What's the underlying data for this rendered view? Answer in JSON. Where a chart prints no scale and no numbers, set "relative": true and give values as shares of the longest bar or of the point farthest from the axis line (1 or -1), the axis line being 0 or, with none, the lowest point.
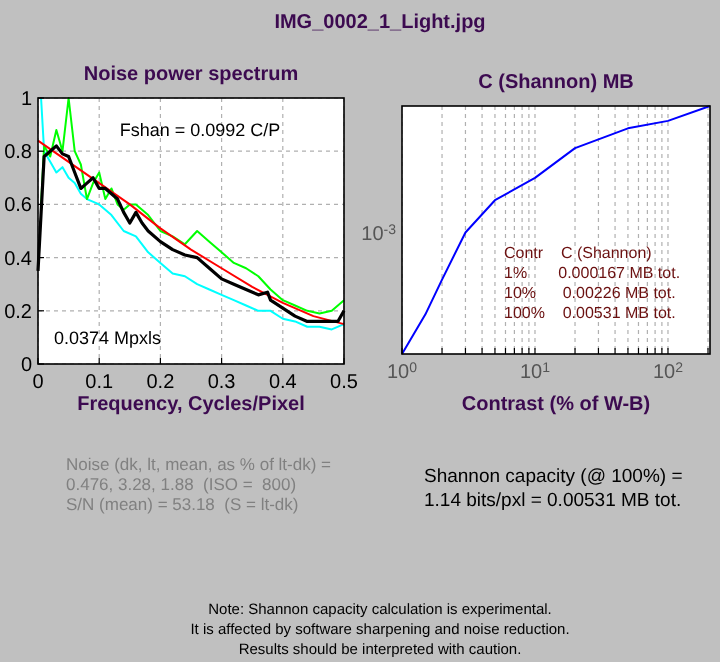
{
  "chart_data": [
    {
      "type": "line",
      "title": "Noise power spectrum",
      "xlabel": "Frequency, Cycles/Pixel",
      "xlim": [
        0,
        0.5
      ],
      "xticks": [
        0,
        0.1,
        0.2,
        0.3,
        0.4,
        0.5
      ],
      "ylim": [
        0,
        1
      ],
      "yticks": [
        0,
        0.2,
        0.4,
        0.6,
        0.8,
        1
      ],
      "grid": true,
      "series": [
        {
          "color": "#00ffff",
          "x": [
            0.005,
            0.01,
            0.02,
            0.03,
            0.04,
            0.05,
            0.06,
            0.07,
            0.08,
            0.1,
            0.12,
            0.14,
            0.16,
            0.18,
            0.2,
            0.22,
            0.24,
            0.26,
            0.28,
            0.3,
            0.32,
            0.34,
            0.36,
            0.38,
            0.4,
            0.42,
            0.44,
            0.46,
            0.48,
            0.5
          ],
          "values": [
            1.0,
            0.8,
            0.76,
            0.72,
            0.74,
            0.7,
            0.68,
            0.64,
            0.62,
            0.6,
            0.56,
            0.5,
            0.48,
            0.42,
            0.38,
            0.34,
            0.33,
            0.3,
            0.28,
            0.26,
            0.24,
            0.22,
            0.2,
            0.2,
            0.17,
            0.16,
            0.14,
            0.14,
            0.13,
            0.15
          ]
        },
        {
          "color": "#00ff00",
          "x": [
            0.005,
            0.01,
            0.02,
            0.03,
            0.04,
            0.05,
            0.06,
            0.07,
            0.08,
            0.09,
            0.1,
            0.11,
            0.12,
            0.13,
            0.14,
            0.15,
            0.16,
            0.17,
            0.18,
            0.2,
            0.22,
            0.24,
            0.26,
            0.28,
            0.3,
            0.32,
            0.34,
            0.36,
            0.38,
            0.4,
            0.42,
            0.44,
            0.46,
            0.48,
            0.5
          ],
          "values": [
            0.6,
            0.82,
            0.78,
            0.88,
            0.8,
            1.0,
            0.8,
            0.75,
            0.62,
            0.68,
            0.72,
            0.62,
            0.66,
            0.6,
            0.58,
            0.6,
            0.6,
            0.58,
            0.56,
            0.5,
            0.48,
            0.45,
            0.5,
            0.46,
            0.42,
            0.38,
            0.36,
            0.33,
            0.28,
            0.24,
            0.22,
            0.2,
            0.19,
            0.2,
            0.24
          ]
        },
        {
          "color": "#ff0000",
          "x": [
            0,
            0.05,
            0.1,
            0.15,
            0.2,
            0.25,
            0.3,
            0.35,
            0.4,
            0.45,
            0.5
          ],
          "values": [
            0.84,
            0.76,
            0.68,
            0.6,
            0.51,
            0.43,
            0.36,
            0.29,
            0.23,
            0.18,
            0.15
          ]
        },
        {
          "color": "#000000",
          "x": [
            0,
            0.01,
            0.02,
            0.03,
            0.04,
            0.05,
            0.06,
            0.07,
            0.08,
            0.09,
            0.1,
            0.11,
            0.12,
            0.13,
            0.14,
            0.15,
            0.16,
            0.17,
            0.18,
            0.2,
            0.22,
            0.24,
            0.26,
            0.28,
            0.3,
            0.32,
            0.34,
            0.36,
            0.375,
            0.38,
            0.4,
            0.42,
            0.44,
            0.46,
            0.48,
            0.49,
            0.5
          ],
          "values": [
            0.35,
            0.78,
            0.8,
            0.82,
            0.79,
            0.78,
            0.72,
            0.66,
            0.68,
            0.7,
            0.66,
            0.66,
            0.64,
            0.62,
            0.57,
            0.53,
            0.57,
            0.53,
            0.5,
            0.46,
            0.43,
            0.41,
            0.4,
            0.36,
            0.32,
            0.3,
            0.28,
            0.26,
            0.27,
            0.24,
            0.21,
            0.18,
            0.16,
            0.16,
            0.16,
            0.16,
            0.2
          ]
        }
      ],
      "annotations": [
        "IMG_0002_1_Light.jpg",
        "Fshan = 0.0992 C/P",
        "0.0374 Mpxls",
        "Noise (dk, lt, mean, as % of lt-dk) =",
        "0.476, 3.28, 1.88  (ISO =  800)",
        "S/N (mean) = 53.18  (S = lt-dk)"
      ]
    },
    {
      "type": "line",
      "title": "C (Shannon) MB",
      "xlabel": "Contrast (% of W-B)",
      "log": "x",
      "grid": "x",
      "relative": true,
      "xlim": [
        1,
        207
      ],
      "xticks": [
        {
          "value": 1,
          "label": "10$^{0}$"
        },
        {
          "value": 2,
          "label": null
        },
        {
          "value": 3,
          "label": null
        },
        {
          "value": 4,
          "label": null
        },
        {
          "value": 5,
          "label": null
        },
        {
          "value": 6,
          "label": null
        },
        {
          "value": 7,
          "label": null
        },
        {
          "value": 8,
          "label": null
        },
        {
          "value": 9,
          "label": null
        },
        {
          "value": 10,
          "label": "10$^{1}$"
        },
        {
          "value": 20,
          "label": null
        },
        {
          "value": 30,
          "label": null
        },
        {
          "value": 40,
          "label": null
        },
        {
          "value": 50,
          "label": null
        },
        {
          "value": 60,
          "label": null
        },
        {
          "value": 70,
          "label": null
        },
        {
          "value": 80,
          "label": null
        },
        {
          "value": 90,
          "label": null
        },
        {
          "value": 100,
          "label": "10$^{2}$"
        },
        {
          "value": 200,
          "label": null
        }
      ],
      "series": [
        {
          "color": "#0000ff",
          "x": [
            1,
            1.5,
            2,
            3,
            5,
            10,
            20,
            50,
            100,
            207
          ],
          "values": [
            0,
            0.16,
            0.3,
            0.49,
            0.62,
            0.71,
            0.83,
            0.91,
            0.94,
            1
          ]
        }
      ],
      "annotations": [
        "10$^{-3}$",
        "Contr    C (Shannon)",
        "1%       0.000167 MB tot.",
        "10%      0.00226 MB tot.",
        "100%    0.00531 MB tot.",
        "Shannon capacity (@ 100%) =",
        "1.14 bits/pxl = 0.00531 MB tot.",
        "Note: Shannon capacity calculation is experimental.",
        "It is affected by software sharpening and noise reduction.",
        "Results should be interpreted with caution."
      ]
    }
  ]
}
